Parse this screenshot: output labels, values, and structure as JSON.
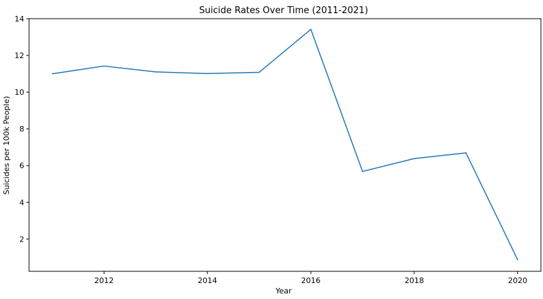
{
  "chart_data": {
    "type": "line",
    "title": "Suicide Rates Over Time (2011-2021)",
    "xlabel": "Year",
    "ylabel": "Suicides per 100k People)",
    "x": [
      2011,
      2012,
      2013,
      2014,
      2015,
      2016,
      2017,
      2018,
      2019,
      2020
    ],
    "series": [
      {
        "values": [
          11.0,
          11.42,
          11.1,
          11.01,
          11.08,
          13.42,
          5.68,
          6.38,
          6.69,
          0.87
        ],
        "color": "#1f77b4"
      }
    ],
    "xlim": [
      2010.55,
      2020.45
    ],
    "ylim": [
      0.24,
      14.0
    ],
    "xticks": [
      2012,
      2014,
      2016,
      2018,
      2020
    ],
    "yticks": [
      2,
      4,
      6,
      8,
      10,
      12,
      14
    ],
    "grid": false,
    "legend": "none"
  }
}
